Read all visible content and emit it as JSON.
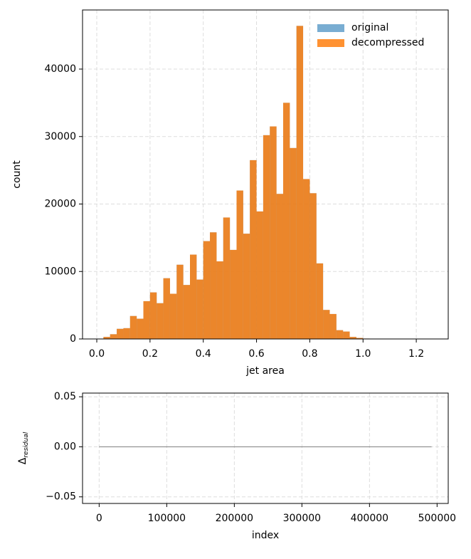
{
  "chart_data": [
    {
      "type": "histogram",
      "xlabel": "jet area",
      "ylabel": "count",
      "bins": [
        0,
        0.025,
        0.05,
        0.075,
        0.1,
        0.125,
        0.15,
        0.175,
        0.2,
        0.225,
        0.25,
        0.275,
        0.3,
        0.325,
        0.35,
        0.375,
        0.4,
        0.425,
        0.45,
        0.475,
        0.5,
        0.525,
        0.55,
        0.575,
        0.6,
        0.625,
        0.65,
        0.675,
        0.7,
        0.725,
        0.75,
        0.775,
        0.8,
        0.825,
        0.85,
        0.875,
        0.9,
        0.925,
        0.95,
        0.975,
        1,
        1.025,
        1.05,
        1.075,
        1.1,
        1.125,
        1.15,
        1.175,
        1.2,
        1.225,
        1.25
      ],
      "series": [
        {
          "name": "original",
          "color": "#1f77b4",
          "opacity": 0.6,
          "values": [
            0,
            300,
            700,
            1500,
            1600,
            3400,
            3000,
            5600,
            6900,
            5300,
            9000,
            6700,
            11000,
            8000,
            12500,
            8800,
            14500,
            15800,
            11500,
            18000,
            13200,
            22000,
            15600,
            26500,
            18900,
            30200,
            31500,
            21500,
            35000,
            28300,
            46400,
            23700,
            21600,
            11200,
            4300,
            3700,
            1300,
            1100,
            300,
            150,
            60,
            20,
            10,
            0,
            0,
            0,
            0,
            0,
            0,
            0
          ]
        },
        {
          "name": "decompressed",
          "color": "#ff7f0e",
          "opacity": 0.85,
          "values": [
            0,
            300,
            700,
            1500,
            1600,
            3400,
            3000,
            5600,
            6900,
            5300,
            9000,
            6700,
            11000,
            8000,
            12500,
            8800,
            14500,
            15800,
            11500,
            18000,
            13200,
            22000,
            15600,
            26500,
            18900,
            30200,
            31500,
            21500,
            35000,
            28300,
            46400,
            23700,
            21600,
            11200,
            4300,
            3700,
            1300,
            1100,
            300,
            150,
            60,
            20,
            10,
            0,
            0,
            0,
            0,
            0,
            0,
            0
          ]
        }
      ],
      "xlim": [
        -0.0535,
        1.32
      ],
      "ylim": [
        0,
        48760
      ],
      "xticks": [
        {
          "value": 0,
          "label": "0.0"
        },
        {
          "value": 0.2,
          "label": "0.2"
        },
        {
          "value": 0.4,
          "label": "0.4"
        },
        {
          "value": 0.6,
          "label": "0.6"
        },
        {
          "value": 0.8,
          "label": "0.8"
        },
        {
          "value": 1,
          "label": "1.0"
        },
        {
          "value": 1.2,
          "label": "1.2"
        }
      ],
      "yticks": [
        0,
        10000,
        20000,
        30000,
        40000
      ],
      "grid": true,
      "legend": "upper right"
    },
    {
      "type": "line",
      "xlabel": "index",
      "ylabel": {
        "symbol": "Δ",
        "subscript": "residual"
      },
      "x": [
        0,
        491865
      ],
      "series": [
        {
          "color": "#808080",
          "values": [
            0,
            0
          ]
        }
      ],
      "xlim": [
        -24600,
        516500
      ],
      "ylim": [
        -0.0566,
        0.0537
      ],
      "xticks": [
        0,
        100000,
        200000,
        300000,
        400000,
        500000
      ],
      "yticks": [
        {
          "value": -0.05,
          "label": "−0.05"
        },
        {
          "value": 0,
          "label": "0.00"
        },
        {
          "value": 0.05,
          "label": "0.05"
        }
      ],
      "grid": true
    }
  ]
}
